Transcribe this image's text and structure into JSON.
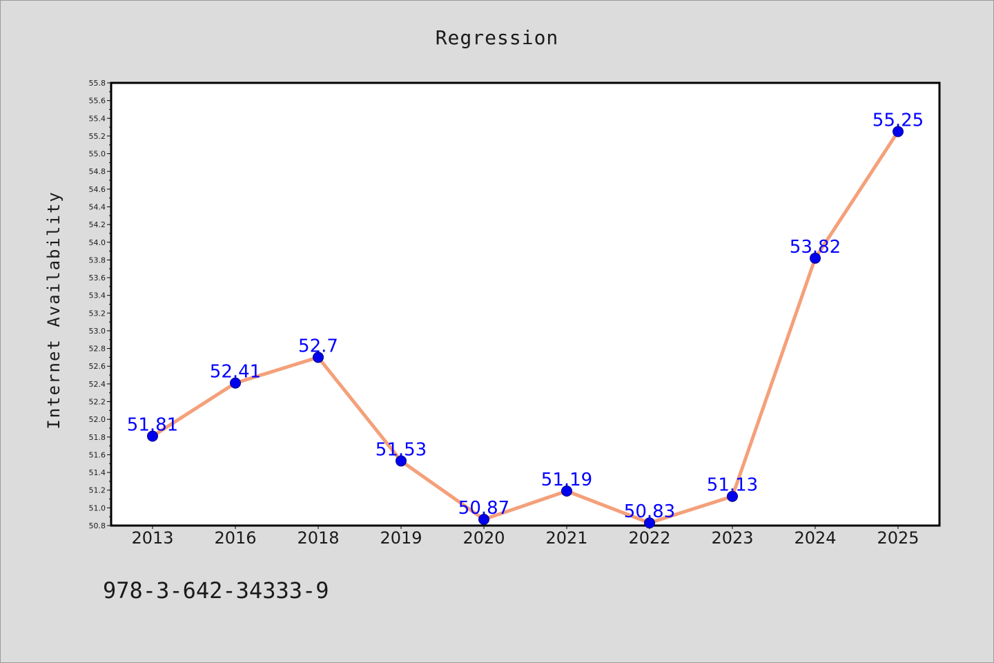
{
  "chart_data": {
    "type": "line",
    "title": "Regression",
    "xlabel": "",
    "ylabel": "Internet Availability",
    "categories": [
      "2013",
      "2016",
      "2018",
      "2019",
      "2020",
      "2021",
      "2022",
      "2023",
      "2024",
      "2025"
    ],
    "series": [
      {
        "values": [
          51.81,
          52.41,
          52.7,
          51.53,
          50.87,
          51.19,
          50.83,
          51.13,
          53.82,
          55.25
        ],
        "data_labels": [
          "51.81",
          "52.41",
          "52.7",
          "51.53",
          "50.87",
          "51.19",
          "50.83",
          "51.13",
          "53.82",
          "55.25"
        ],
        "line_color": "#f4a07a",
        "marker_color": "#0000ee"
      }
    ],
    "ylim": [
      50.8,
      55.8
    ],
    "yticks": [
      "50.8",
      "51.0",
      "51.2",
      "51.4",
      "51.6",
      "51.8",
      "52.0",
      "52.2",
      "52.4",
      "52.6",
      "52.8",
      "53.0",
      "53.2",
      "53.4",
      "53.6",
      "53.8",
      "54.0",
      "54.2",
      "54.4",
      "54.6",
      "54.8",
      "55.0",
      "55.2",
      "55.4",
      "55.6",
      "55.8"
    ],
    "grid": false,
    "legend": "none",
    "label_color": "#0000ff",
    "background": "#dcdcdc",
    "plot_background": "#ffffff"
  },
  "footnote": "978-3-642-34333-9"
}
